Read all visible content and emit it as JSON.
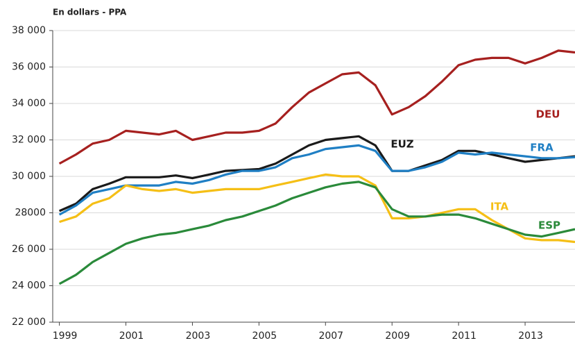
{
  "chart_data": {
    "type": "line",
    "title": "En dollars - PPA",
    "x": [
      1999,
      1999.5,
      2000,
      2000.5,
      2001,
      2001.5,
      2002,
      2002.5,
      2003,
      2003.5,
      2004,
      2004.5,
      2005,
      2005.5,
      2006,
      2006.5,
      2007,
      2007.5,
      2008,
      2008.5,
      2009,
      2009.5,
      2010,
      2010.5,
      2011,
      2011.5,
      2012,
      2012.5,
      2013,
      2013.5,
      2014,
      2014.5
    ],
    "xlim": [
      1998.8,
      2014.5
    ],
    "xticks": [
      1999,
      2001,
      2003,
      2005,
      2007,
      2009,
      2011,
      2013
    ],
    "ylim": [
      22000,
      38000
    ],
    "yticks": [
      {
        "value": 22000,
        "label": "22 000"
      },
      {
        "value": 24000,
        "label": "24 000"
      },
      {
        "value": 26000,
        "label": "26 000"
      },
      {
        "value": 28000,
        "label": "28000"
      },
      {
        "value": 30000,
        "label": "30 000"
      },
      {
        "value": 32000,
        "label": "32 000"
      },
      {
        "value": 34000,
        "label": "34 000"
      },
      {
        "value": 36000,
        "label": "36 000"
      },
      {
        "value": 38000,
        "label": "38 000"
      }
    ],
    "grid": true,
    "series": [
      {
        "name": "DEU",
        "color": "#a6201f",
        "values": [
          30700,
          31200,
          31800,
          32000,
          32500,
          32400,
          32300,
          32500,
          32000,
          32200,
          32400,
          32400,
          32500,
          32900,
          33800,
          34600,
          35100,
          35600,
          35700,
          35000,
          33400,
          33800,
          34400,
          35200,
          36100,
          36400,
          36500,
          36500,
          36200,
          36500,
          36900,
          36800
        ]
      },
      {
        "name": "EUZ",
        "color": "#1a1a1a",
        "values": [
          28100,
          28500,
          29300,
          29600,
          29950,
          29950,
          29950,
          30050,
          29900,
          30100,
          30300,
          30350,
          30400,
          30700,
          31200,
          31700,
          32000,
          32100,
          32200,
          31700,
          30300,
          30300,
          30600,
          30900,
          31400,
          31400,
          31200,
          31000,
          30800,
          30900,
          31000,
          31100
        ]
      },
      {
        "name": "FRA",
        "color": "#1f7fc4",
        "values": [
          27900,
          28400,
          29100,
          29300,
          29500,
          29500,
          29500,
          29700,
          29600,
          29800,
          30100,
          30300,
          30300,
          30500,
          31000,
          31200,
          31500,
          31600,
          31700,
          31400,
          30300,
          30300,
          30500,
          30800,
          31300,
          31200,
          31300,
          31200,
          31100,
          31000,
          31000,
          31050
        ]
      },
      {
        "name": "ITA",
        "color": "#f5bf16",
        "values": [
          27500,
          27800,
          28500,
          28800,
          29500,
          29300,
          29200,
          29300,
          29100,
          29200,
          29300,
          29300,
          29300,
          29500,
          29700,
          29900,
          30100,
          30000,
          30000,
          29500,
          27700,
          27700,
          27800,
          28000,
          28200,
          28200,
          27600,
          27100,
          26600,
          26500,
          26500,
          26400
        ]
      },
      {
        "name": "ESP",
        "color": "#2a8a3a",
        "values": [
          24100,
          24600,
          25300,
          25800,
          26300,
          26600,
          26800,
          26900,
          27100,
          27300,
          27600,
          27800,
          28100,
          28400,
          28800,
          29100,
          29400,
          29600,
          29700,
          29400,
          28200,
          27800,
          27800,
          27900,
          27900,
          27700,
          27400,
          27100,
          26800,
          26700,
          26900,
          27100
        ]
      }
    ]
  }
}
